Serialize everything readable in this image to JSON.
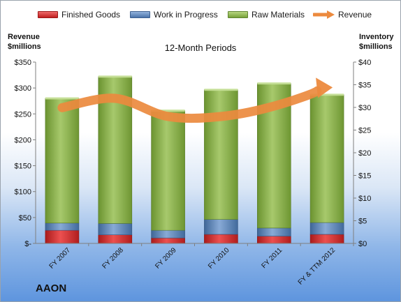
{
  "chart_data": {
    "type": "bar",
    "stacked": true,
    "categories": [
      "FY 2007",
      "FY 2008",
      "FY 2009",
      "FY 2010",
      "FY 2011",
      "FY & TTM 2012"
    ],
    "series": [
      {
        "name": "Finished Goods",
        "axis": "right",
        "color": "#d42a2a",
        "values": [
          2.9,
          1.9,
          1.2,
          2.0,
          1.6,
          2.0
        ]
      },
      {
        "name": "Work in Progress",
        "axis": "right",
        "color": "#5a83b9",
        "values": [
          1.6,
          2.5,
          1.7,
          3.3,
          1.8,
          2.6
        ]
      },
      {
        "name": "Raw Materials",
        "axis": "right",
        "color": "#8bb34a",
        "values": [
          27.5,
          32.4,
          26.4,
          28.6,
          31.9,
          28.2
        ]
      },
      {
        "name": "Revenue",
        "axis": "left",
        "type": "line",
        "color": "#ec8a3e",
        "values": [
          262,
          280,
          245,
          245,
          265,
          301
        ]
      }
    ],
    "title": "12-Month Periods",
    "ylabel_left": "Revenue\n$millions",
    "ylabel_right": "Inventory\n$millions",
    "ylim_left": [
      0,
      350
    ],
    "ylim_right": [
      0,
      40
    ],
    "yticks_left": [
      "$-",
      "$50",
      "$100",
      "$150",
      "$200",
      "$250",
      "$300",
      "$350"
    ],
    "yticks_right": [
      "$0",
      "$5",
      "$10",
      "$15",
      "$20",
      "$25",
      "$30",
      "$35",
      "$40"
    ],
    "grid": false,
    "legend_position": "top"
  },
  "legend": [
    {
      "label": "Finished Goods",
      "color": "#d42a2a"
    },
    {
      "label": "Work in Progress",
      "color": "#5a83b9"
    },
    {
      "label": "Raw Materials",
      "color": "#8bb34a"
    },
    {
      "label": "Revenue",
      "color": "#ec8a3e"
    }
  ],
  "labels": {
    "left_axis_line1": "Revenue",
    "left_axis_line2": "$millions",
    "right_axis_line1": "Inventory",
    "right_axis_line2": "$millions",
    "chart_title": "12-Month Periods",
    "company": "AAON"
  }
}
